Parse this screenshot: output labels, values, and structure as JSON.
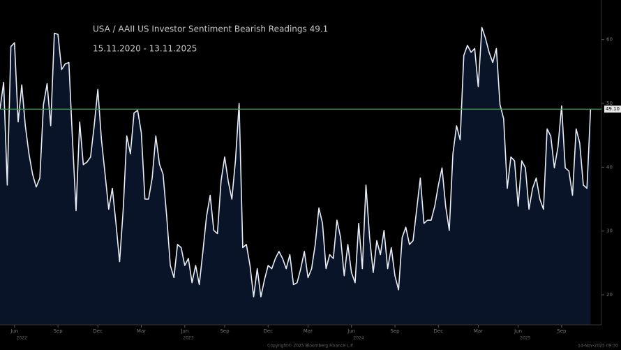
{
  "chart_data": {
    "type": "line",
    "title": "USA / AAII US Investor Sentiment Bearish Readings 49.1",
    "subtitle": "15.11.2020 - 13.11.2025",
    "color": "#e8eef8",
    "fill_color": "#0a1428",
    "values": [
      49.1,
      53.3,
      37.2,
      58.9,
      59.5,
      47.1,
      52.9,
      46.5,
      42.1,
      38.9,
      36.9,
      38.3,
      49.8,
      53.1,
      46.5,
      61.0,
      60.8,
      55.3,
      56.2,
      56.4,
      44.3,
      33.2,
      47.1,
      40.4,
      40.8,
      41.6,
      46.5,
      52.2,
      44.3,
      38.9,
      33.4,
      36.7,
      31.2,
      25.2,
      33.4,
      44.9,
      42.1,
      48.5,
      48.9,
      45.4,
      35.0,
      35.0,
      38.3,
      44.9,
      40.5,
      38.9,
      32.3,
      24.6,
      22.7,
      27.9,
      27.4,
      24.6,
      25.7,
      21.9,
      24.6,
      21.6,
      26.8,
      32.3,
      35.6,
      30.1,
      29.6,
      37.8,
      41.6,
      37.8,
      35.0,
      41.1,
      50.0,
      27.4,
      27.9,
      24.6,
      19.7,
      24.1,
      19.7,
      22.4,
      24.6,
      24.1,
      25.7,
      26.8,
      25.7,
      24.1,
      26.3,
      21.6,
      21.9,
      24.1,
      26.8,
      22.7,
      24.1,
      27.9,
      33.6,
      31.2,
      24.1,
      26.3,
      25.7,
      31.7,
      29.0,
      23.0,
      27.9,
      23.5,
      21.9,
      31.2,
      24.1,
      37.2,
      29.0,
      23.5,
      28.5,
      26.3,
      30.1,
      24.1,
      27.4,
      23.0,
      20.8,
      29.0,
      30.6,
      27.9,
      28.5,
      33.4,
      38.3,
      31.2,
      31.7,
      31.7,
      33.9,
      37.2,
      39.9,
      33.9,
      30.1,
      42.1,
      46.5,
      44.3,
      57.5,
      59.1,
      58.0,
      58.6,
      52.6,
      61.9,
      60.2,
      58.0,
      56.4,
      58.6,
      49.8,
      47.6,
      36.7,
      41.6,
      41.0,
      33.9,
      41.0,
      39.9,
      33.4,
      36.7,
      38.3,
      35.0,
      33.4,
      46.0,
      44.9,
      39.9,
      43.2,
      49.6,
      39.9,
      39.4,
      35.6,
      46.0,
      43.8,
      37.2,
      36.7,
      49.1
    ],
    "xlim": [
      0,
      166
    ],
    "xticks": [
      {
        "value": 4,
        "label": "Jun"
      },
      {
        "value": 16,
        "label": "Sep"
      },
      {
        "value": 27,
        "label": "Dec"
      },
      {
        "value": 39,
        "label": "Mar"
      },
      {
        "value": 51,
        "label": "Jun"
      },
      {
        "value": 62,
        "label": "Sep"
      },
      {
        "value": 74,
        "label": "Dec"
      },
      {
        "value": 85,
        "label": "Mar"
      },
      {
        "value": 97,
        "label": "Jun"
      },
      {
        "value": 109,
        "label": "Sep"
      },
      {
        "value": 121,
        "label": "Dec"
      },
      {
        "value": 132,
        "label": "Mar"
      },
      {
        "value": 143,
        "label": "Jun"
      },
      {
        "value": 155,
        "label": "Sep"
      }
    ],
    "year_ticks": [
      {
        "value": 6,
        "label": "2022"
      },
      {
        "value": 52,
        "label": "2023"
      },
      {
        "value": 99,
        "label": "2024"
      },
      {
        "value": 145,
        "label": "2025"
      }
    ],
    "ylim": [
      15.3,
      66.2
    ],
    "yticks": [
      20,
      30,
      40,
      50,
      60
    ],
    "reference_line": {
      "value": 49.1,
      "label": "49.10",
      "color": "#3fa34d"
    },
    "footer": {
      "copyright": "Copyright© 2025 Bloomberg Finance L.P.",
      "timestamp": "14-Nov-2025 09:30"
    }
  }
}
